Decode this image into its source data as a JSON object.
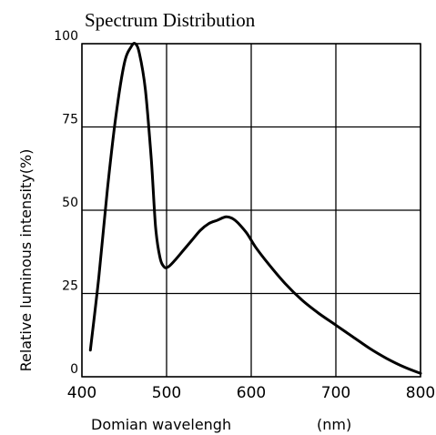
{
  "chart_data": {
    "type": "line",
    "title": "Spectrum Distribution",
    "xlabel": "Domian wavelengh",
    "xunit": "(nm)",
    "ylabel": "Relative luminous intensity(%)",
    "xlim": [
      400,
      800
    ],
    "ylim": [
      0,
      100
    ],
    "x_ticks": [
      "400",
      "500",
      "600",
      "700",
      "800"
    ],
    "y_ticks": [
      "0",
      "25",
      "50",
      "75",
      "100"
    ],
    "grid": true,
    "series": [
      {
        "x": [
          410,
          420,
          430,
          440,
          450,
          458,
          463,
          468,
          475,
          482,
          487,
          492,
          497,
          502,
          510,
          520,
          530,
          540,
          550,
          560,
          570,
          578,
          585,
          595,
          605,
          620,
          640,
          660,
          680,
          700,
          720,
          740,
          760,
          780,
          800
        ],
        "y": [
          8,
          30,
          56,
          78,
          94,
          99,
          100,
          97,
          86,
          65,
          45,
          36,
          33,
          33,
          35,
          38,
          41,
          44,
          46,
          47,
          48,
          47.5,
          46,
          43,
          39,
          34,
          28,
          23,
          19,
          15.5,
          12,
          8.5,
          5.5,
          3,
          1
        ]
      }
    ]
  }
}
